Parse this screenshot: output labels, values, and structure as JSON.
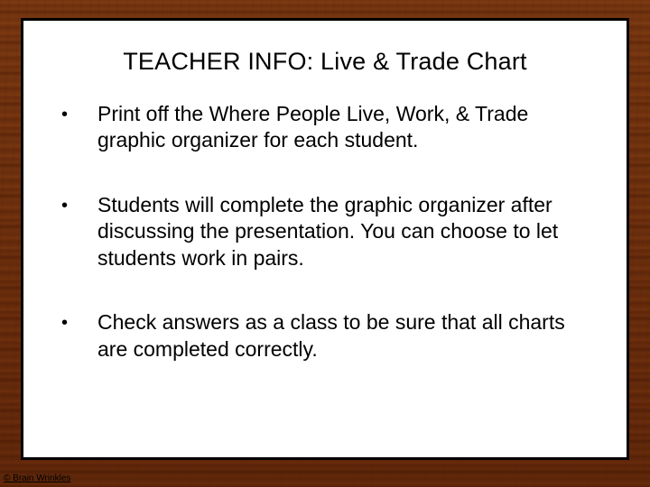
{
  "background": {
    "type": "wood-texture",
    "base_color": "#a96f3a",
    "dark_color": "#8f5728",
    "light_color": "#b87d46"
  },
  "panel": {
    "background_color": "#ffffff",
    "border_color": "#000000",
    "border_width": 3
  },
  "title": {
    "text": "TEACHER INFO: Live & Trade Chart",
    "fontsize": 27,
    "color": "#000000"
  },
  "bullets": [
    {
      "text": "Print off the Where People Live, Work, & Trade graphic organizer for each student."
    },
    {
      "text": "Students will complete the graphic organizer after discussing the presentation. You can choose to let students work in pairs."
    },
    {
      "text": "Check answers as a class to be sure that all charts are completed correctly."
    }
  ],
  "bullet_style": {
    "marker": "•",
    "fontsize": 23,
    "color": "#000000",
    "line_height": 1.28
  },
  "copyright": {
    "text": "© Brain Wrinkles",
    "fontsize": 10,
    "underline": true
  }
}
